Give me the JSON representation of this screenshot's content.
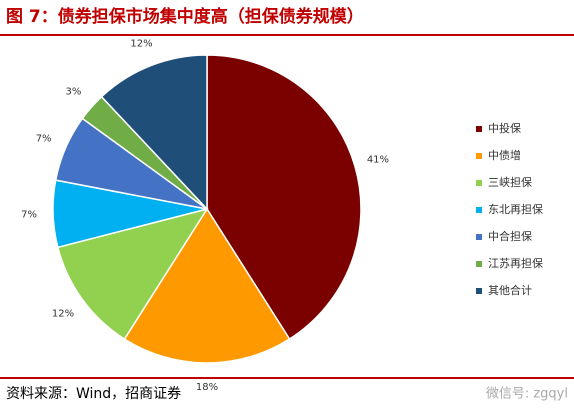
{
  "chart_data": {
    "type": "pie",
    "title": "图 7：债券担保市场集中度高（担保债券规模）",
    "categories": [
      "中投保",
      "中债增",
      "三峡担保",
      "东北再担保",
      "中合担保",
      "江苏再担保",
      "其他合计"
    ],
    "values": [
      41,
      18,
      12,
      7,
      7,
      3,
      12
    ],
    "value_labels": [
      "41%",
      "18%",
      "12%",
      "7%",
      "7%",
      "3%",
      "12%"
    ],
    "colors": [
      "#7b0000",
      "#ff9900",
      "#92d050",
      "#00b0f0",
      "#4472c4",
      "#70ad47",
      "#1f4e79"
    ],
    "legend": "right",
    "source": "资料来源：Wind，招商证券",
    "watermark": "微信号: zgqyl"
  }
}
